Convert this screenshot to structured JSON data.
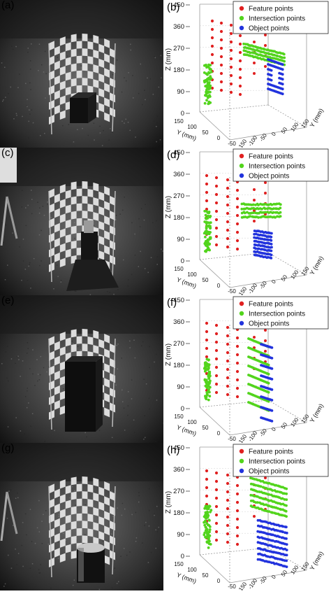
{
  "panels": [
    {
      "left_label": "(a)",
      "right_label": "(b)",
      "object": "box",
      "mode": "box"
    },
    {
      "left_label": "(c)",
      "right_label": "(d)",
      "object": "tripod",
      "mode": "wedge"
    },
    {
      "left_label": "(e)",
      "right_label": "(f)",
      "object": "big-box",
      "mode": "stripes"
    },
    {
      "left_label": "(g)",
      "right_label": "(h)",
      "object": "cylinder",
      "mode": "cylinder"
    }
  ],
  "legend": {
    "feature": "Feature points",
    "intersection": "Intersection points",
    "object": "Object points"
  },
  "axes": {
    "z_label": "Z (mm)",
    "y_label": "Y (mm)",
    "z_ticks": [
      "450",
      "360",
      "270",
      "180",
      "90",
      "0"
    ],
    "y_left_ticks": [
      "150",
      "100",
      "50",
      "0",
      "-50"
    ],
    "y_right_ticks": [
      "-150",
      "-100",
      "-50",
      "0",
      "50",
      "100",
      "150"
    ]
  },
  "colors": {
    "feature": "#e02020",
    "intersection": "#52d41c",
    "object": "#2233dd"
  }
}
